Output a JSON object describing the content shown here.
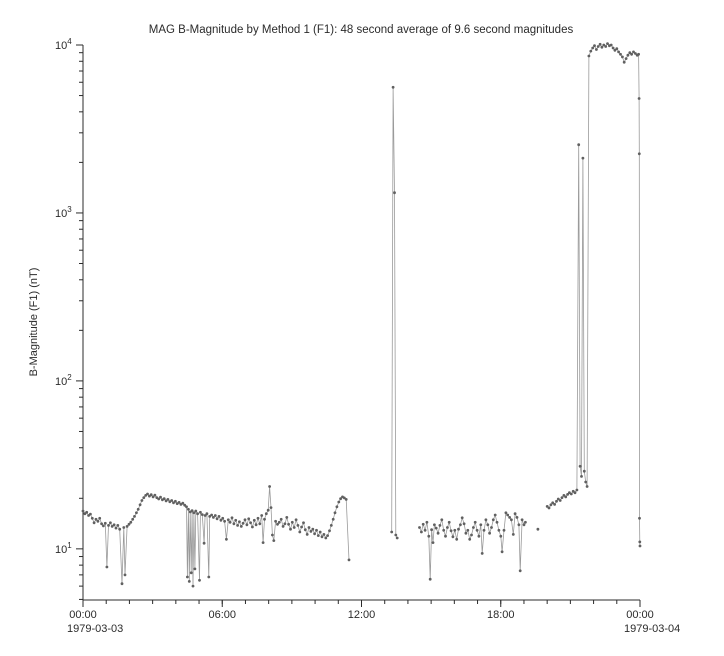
{
  "page": {
    "background": "#ffffff"
  },
  "chart_data": {
    "type": "scatter",
    "title": "MAG  B-Magnitude by Method 1 (F1): 48 second average of 9.6 second magnitudes",
    "ylabel": "B-Magnitude (F1) (nT)",
    "date_left": "1979-03-03",
    "date_right": "1979-03-04",
    "x_unit": "hours since 1979-03-03 00:00",
    "xlim": [
      0,
      24
    ],
    "ylim": [
      4.96,
      10000
    ],
    "y_scale": "log",
    "grid": false,
    "legend": "none",
    "marker_color": "#606060",
    "line_color": "#9a9a9a",
    "axis_color": "#2b2b2b",
    "gap_threshold_hours": 0.3,
    "x_ticks": [
      {
        "t": 0,
        "label": "00:00"
      },
      {
        "t": 6,
        "label": "06:00"
      },
      {
        "t": 12,
        "label": "12:00"
      },
      {
        "t": 18,
        "label": "18:00"
      },
      {
        "t": 24,
        "label": "00:00"
      }
    ],
    "x_minor_step_hours": 1,
    "y_ticks_exponents": [
      1,
      2,
      3,
      4
    ],
    "points": [
      [
        0.0,
        16.8
      ],
      [
        0.08,
        16.2
      ],
      [
        0.16,
        16.5
      ],
      [
        0.24,
        15.8
      ],
      [
        0.32,
        16.1
      ],
      [
        0.4,
        15.2
      ],
      [
        0.48,
        14.3
      ],
      [
        0.56,
        15.0
      ],
      [
        0.64,
        14.6
      ],
      [
        0.72,
        15.2
      ],
      [
        0.8,
        14.1
      ],
      [
        0.88,
        13.7
      ],
      [
        0.96,
        14.2
      ],
      [
        1.03,
        7.8
      ],
      [
        1.1,
        13.8
      ],
      [
        1.18,
        14.3
      ],
      [
        1.26,
        13.6
      ],
      [
        1.34,
        13.9
      ],
      [
        1.42,
        13.3
      ],
      [
        1.5,
        13.8
      ],
      [
        1.58,
        13.1
      ],
      [
        1.68,
        6.2
      ],
      [
        1.76,
        13.4
      ],
      [
        1.81,
        7.0
      ],
      [
        1.9,
        13.6
      ],
      [
        1.98,
        14.0
      ],
      [
        2.06,
        14.4
      ],
      [
        2.14,
        15.0
      ],
      [
        2.22,
        15.6
      ],
      [
        2.3,
        16.4
      ],
      [
        2.38,
        17.2
      ],
      [
        2.46,
        18.3
      ],
      [
        2.54,
        19.4
      ],
      [
        2.62,
        20.2
      ],
      [
        2.7,
        20.8
      ],
      [
        2.78,
        21.2
      ],
      [
        2.86,
        20.6
      ],
      [
        2.94,
        21.0
      ],
      [
        3.02,
        20.4
      ],
      [
        3.1,
        20.9
      ],
      [
        3.18,
        20.2
      ],
      [
        3.26,
        19.8
      ],
      [
        3.34,
        20.3
      ],
      [
        3.42,
        19.6
      ],
      [
        3.5,
        19.9
      ],
      [
        3.58,
        19.3
      ],
      [
        3.66,
        19.7
      ],
      [
        3.74,
        19.1
      ],
      [
        3.82,
        19.4
      ],
      [
        3.9,
        18.8
      ],
      [
        3.98,
        19.2
      ],
      [
        4.06,
        18.6
      ],
      [
        4.14,
        18.9
      ],
      [
        4.22,
        18.4
      ],
      [
        4.3,
        18.7
      ],
      [
        4.38,
        18.2
      ],
      [
        4.46,
        17.8
      ],
      [
        4.5,
        6.8
      ],
      [
        4.54,
        17.2
      ],
      [
        4.58,
        6.4
      ],
      [
        4.62,
        16.6
      ],
      [
        4.66,
        7.2
      ],
      [
        4.7,
        16.9
      ],
      [
        4.74,
        6.0
      ],
      [
        4.78,
        16.4
      ],
      [
        4.82,
        7.6
      ],
      [
        4.86,
        16.8
      ],
      [
        4.94,
        16.2
      ],
      [
        5.02,
        6.5
      ],
      [
        5.06,
        16.5
      ],
      [
        5.14,
        16.0
      ],
      [
        5.22,
        10.8
      ],
      [
        5.26,
        15.8
      ],
      [
        5.34,
        16.2
      ],
      [
        5.42,
        6.8
      ],
      [
        5.46,
        15.6
      ],
      [
        5.54,
        15.9
      ],
      [
        5.62,
        15.4
      ],
      [
        5.7,
        15.8
      ],
      [
        5.78,
        15.1
      ],
      [
        5.86,
        15.6
      ],
      [
        5.94,
        14.8
      ],
      [
        6.02,
        15.2
      ],
      [
        6.1,
        14.6
      ],
      [
        6.18,
        11.4
      ],
      [
        6.26,
        14.9
      ],
      [
        6.34,
        14.4
      ],
      [
        6.42,
        15.3
      ],
      [
        6.5,
        14.1
      ],
      [
        6.58,
        14.8
      ],
      [
        6.66,
        13.8
      ],
      [
        6.74,
        14.5
      ],
      [
        6.82,
        13.6
      ],
      [
        6.9,
        14.2
      ],
      [
        6.98,
        14.9
      ],
      [
        7.06,
        13.9
      ],
      [
        7.14,
        15.1
      ],
      [
        7.22,
        14.3
      ],
      [
        7.3,
        13.5
      ],
      [
        7.38,
        14.8
      ],
      [
        7.46,
        13.9
      ],
      [
        7.54,
        15.2
      ],
      [
        7.62,
        14.1
      ],
      [
        7.7,
        15.8
      ],
      [
        7.76,
        10.9
      ],
      [
        7.82,
        15.0
      ],
      [
        7.9,
        16.2
      ],
      [
        7.98,
        17.0
      ],
      [
        8.04,
        23.5
      ],
      [
        8.1,
        17.6
      ],
      [
        8.16,
        12.1
      ],
      [
        8.22,
        11.2
      ],
      [
        8.3,
        14.6
      ],
      [
        8.38,
        14.0
      ],
      [
        8.46,
        14.4
      ],
      [
        8.54,
        15.0
      ],
      [
        8.62,
        13.6
      ],
      [
        8.7,
        14.1
      ],
      [
        8.78,
        15.4
      ],
      [
        8.86,
        14.0
      ],
      [
        8.94,
        13.1
      ],
      [
        9.02,
        14.4
      ],
      [
        9.1,
        13.4
      ],
      [
        9.18,
        14.9
      ],
      [
        9.26,
        13.8
      ],
      [
        9.34,
        12.6
      ],
      [
        9.42,
        13.5
      ],
      [
        9.5,
        14.3
      ],
      [
        9.58,
        13.0
      ],
      [
        9.66,
        12.2
      ],
      [
        9.74,
        13.4
      ],
      [
        9.82,
        12.7
      ],
      [
        9.9,
        13.1
      ],
      [
        9.98,
        12.3
      ],
      [
        10.06,
        12.9
      ],
      [
        10.14,
        12.0
      ],
      [
        10.22,
        12.6
      ],
      [
        10.3,
        11.8
      ],
      [
        10.38,
        12.2
      ],
      [
        10.46,
        11.6
      ],
      [
        10.54,
        12.0
      ],
      [
        10.62,
        12.8
      ],
      [
        10.7,
        13.8
      ],
      [
        10.78,
        15.0
      ],
      [
        10.86,
        16.4
      ],
      [
        10.94,
        17.8
      ],
      [
        11.02,
        19.0
      ],
      [
        11.1,
        19.9
      ],
      [
        11.18,
        20.4
      ],
      [
        11.26,
        20.1
      ],
      [
        11.34,
        19.7
      ],
      [
        11.46,
        8.6
      ],
      [
        13.3,
        12.6
      ],
      [
        13.36,
        5600
      ],
      [
        13.42,
        1320
      ],
      [
        13.48,
        12.1
      ],
      [
        13.54,
        11.6
      ],
      [
        14.5,
        13.4
      ],
      [
        14.58,
        12.6
      ],
      [
        14.66,
        14.0
      ],
      [
        14.74,
        12.9
      ],
      [
        14.82,
        14.4
      ],
      [
        14.9,
        11.9
      ],
      [
        14.96,
        6.6
      ],
      [
        15.02,
        13.0
      ],
      [
        15.08,
        10.9
      ],
      [
        15.14,
        13.9
      ],
      [
        15.22,
        13.3
      ],
      [
        15.3,
        12.4
      ],
      [
        15.38,
        13.8
      ],
      [
        15.46,
        14.9
      ],
      [
        15.54,
        12.9
      ],
      [
        15.62,
        11.9
      ],
      [
        15.7,
        13.4
      ],
      [
        15.78,
        14.4
      ],
      [
        15.86,
        12.8
      ],
      [
        15.94,
        11.8
      ],
      [
        16.02,
        12.9
      ],
      [
        16.1,
        11.4
      ],
      [
        16.18,
        13.1
      ],
      [
        16.26,
        13.9
      ],
      [
        16.34,
        15.3
      ],
      [
        16.42,
        14.1
      ],
      [
        16.5,
        12.4
      ],
      [
        16.58,
        12.9
      ],
      [
        16.66,
        11.4
      ],
      [
        16.74,
        12.1
      ],
      [
        16.82,
        13.4
      ],
      [
        16.9,
        14.4
      ],
      [
        16.98,
        12.9
      ],
      [
        17.06,
        11.9
      ],
      [
        17.14,
        13.9
      ],
      [
        17.2,
        9.4
      ],
      [
        17.28,
        12.9
      ],
      [
        17.36,
        14.9
      ],
      [
        17.44,
        13.9
      ],
      [
        17.52,
        12.4
      ],
      [
        17.6,
        13.4
      ],
      [
        17.68,
        14.9
      ],
      [
        17.76,
        15.9
      ],
      [
        17.84,
        14.4
      ],
      [
        17.92,
        12.9
      ],
      [
        18.0,
        11.9
      ],
      [
        18.06,
        9.6
      ],
      [
        18.14,
        12.9
      ],
      [
        18.22,
        16.4
      ],
      [
        18.3,
        15.9
      ],
      [
        18.38,
        15.4
      ],
      [
        18.46,
        14.9
      ],
      [
        18.54,
        12.2
      ],
      [
        18.62,
        16.2
      ],
      [
        18.7,
        15.4
      ],
      [
        18.78,
        13.9
      ],
      [
        18.84,
        7.4
      ],
      [
        18.92,
        14.9
      ],
      [
        19.0,
        13.9
      ],
      [
        19.06,
        14.4
      ],
      [
        19.6,
        13.1
      ],
      [
        20.0,
        17.9
      ],
      [
        20.08,
        17.5
      ],
      [
        20.16,
        18.3
      ],
      [
        20.24,
        18.8
      ],
      [
        20.32,
        18.4
      ],
      [
        20.4,
        19.2
      ],
      [
        20.48,
        19.8
      ],
      [
        20.56,
        19.4
      ],
      [
        20.64,
        20.2
      ],
      [
        20.72,
        20.8
      ],
      [
        20.8,
        20.4
      ],
      [
        20.88,
        21.1
      ],
      [
        20.96,
        21.6
      ],
      [
        21.04,
        21.2
      ],
      [
        21.12,
        22.0
      ],
      [
        21.2,
        21.6
      ],
      [
        21.28,
        22.4
      ],
      [
        21.36,
        2550
      ],
      [
        21.42,
        31
      ],
      [
        21.48,
        27
      ],
      [
        21.54,
        2120
      ],
      [
        21.6,
        29
      ],
      [
        21.66,
        25
      ],
      [
        21.72,
        23.5
      ],
      [
        21.8,
        8600
      ],
      [
        21.88,
        9200
      ],
      [
        21.96,
        9600
      ],
      [
        22.04,
        9900
      ],
      [
        22.12,
        9400
      ],
      [
        22.2,
        9800
      ],
      [
        22.28,
        10100
      ],
      [
        22.36,
        9700
      ],
      [
        22.44,
        10000
      ],
      [
        22.52,
        9800
      ],
      [
        22.6,
        10200
      ],
      [
        22.68,
        9900
      ],
      [
        22.76,
        10000
      ],
      [
        22.84,
        9600
      ],
      [
        22.92,
        9300
      ],
      [
        23.0,
        9500
      ],
      [
        23.08,
        9100
      ],
      [
        23.16,
        8800
      ],
      [
        23.24,
        8500
      ],
      [
        23.32,
        7900
      ],
      [
        23.4,
        8300
      ],
      [
        23.48,
        8700
      ],
      [
        23.56,
        9000
      ],
      [
        23.64,
        8800
      ],
      [
        23.72,
        9100
      ],
      [
        23.8,
        8900
      ],
      [
        23.88,
        8700
      ],
      [
        23.94,
        8800
      ],
      [
        23.96,
        4800
      ],
      [
        23.97,
        2250
      ],
      [
        23.98,
        15.2
      ],
      [
        23.99,
        11.0
      ],
      [
        24.0,
        10.4
      ]
    ]
  }
}
